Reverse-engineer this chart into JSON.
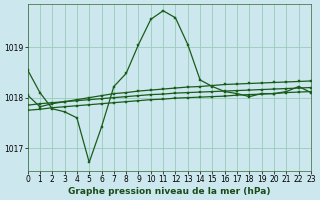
{
  "title": "Graphe pression niveau de la mer (hPa)",
  "bg_color": "#cce8ee",
  "grid_color": "#99ccbb",
  "line_color": "#1a5c1a",
  "xlim": [
    0,
    23
  ],
  "ylim": [
    1016.55,
    1019.85
  ],
  "yticks": [
    1017,
    1018,
    1019
  ],
  "xticks": [
    0,
    1,
    2,
    3,
    4,
    5,
    6,
    7,
    8,
    9,
    10,
    11,
    12,
    13,
    14,
    15,
    16,
    17,
    18,
    19,
    20,
    21,
    22,
    23
  ],
  "series": [
    [
      1018.55,
      1018.1,
      1017.78,
      1017.72,
      1017.6,
      1016.72,
      1017.42,
      1018.22,
      1018.48,
      1019.05,
      1019.55,
      1019.72,
      1019.58,
      1019.05,
      1018.35,
      1018.22,
      1018.12,
      1018.08,
      1018.02,
      1018.08,
      1018.08,
      1018.12,
      1018.22,
      1018.1
    ],
    [
      1018.05,
      1017.82,
      1017.88,
      1017.92,
      1017.96,
      1018.0,
      1018.04,
      1018.08,
      1018.1,
      1018.13,
      1018.15,
      1018.17,
      1018.19,
      1018.21,
      1018.22,
      1018.24,
      1018.26,
      1018.27,
      1018.28,
      1018.29,
      1018.3,
      1018.31,
      1018.32,
      1018.33
    ],
    [
      1017.85,
      1017.88,
      1017.9,
      1017.92,
      1017.94,
      1017.96,
      1017.98,
      1018.0,
      1018.02,
      1018.04,
      1018.06,
      1018.07,
      1018.09,
      1018.1,
      1018.11,
      1018.12,
      1018.13,
      1018.14,
      1018.15,
      1018.16,
      1018.17,
      1018.18,
      1018.19,
      1018.2
    ],
    [
      1017.75,
      1017.77,
      1017.8,
      1017.82,
      1017.84,
      1017.86,
      1017.88,
      1017.9,
      1017.92,
      1017.94,
      1017.96,
      1017.97,
      1017.99,
      1018.0,
      1018.01,
      1018.02,
      1018.03,
      1018.05,
      1018.06,
      1018.07,
      1018.08,
      1018.1,
      1018.11,
      1018.12
    ]
  ],
  "marker": "s",
  "markersize": 2.0,
  "linewidth": 0.9,
  "tick_fontsize": 5.5,
  "xlabel_fontsize": 6.5
}
